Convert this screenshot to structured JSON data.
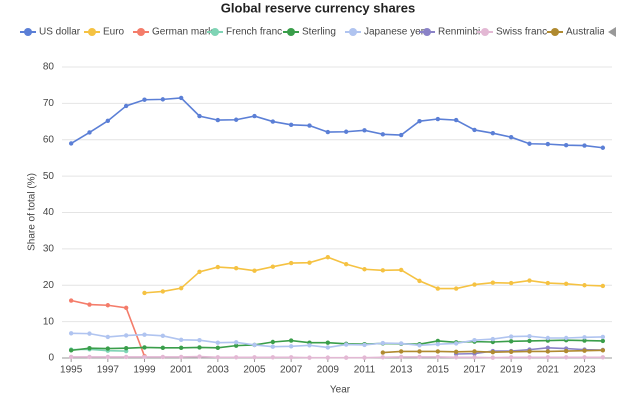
{
  "chart_data": {
    "type": "line",
    "title": "Global reserve currency shares",
    "x_label": "Year",
    "y_label": "Share of total (%)",
    "x": [
      1995,
      1996,
      1997,
      1998,
      1999,
      2000,
      2001,
      2002,
      2003,
      2004,
      2005,
      2006,
      2007,
      2008,
      2009,
      2010,
      2011,
      2012,
      2013,
      2014,
      2015,
      2016,
      2017,
      2018,
      2019,
      2020,
      2021,
      2022,
      2023,
      2024
    ],
    "xlim": [
      1994.5,
      2024.5
    ],
    "xticks": [
      1995,
      1997,
      1999,
      2001,
      2003,
      2005,
      2007,
      2009,
      2011,
      2013,
      2015,
      2017,
      2019,
      2021,
      2023
    ],
    "ylim": [
      0,
      80
    ],
    "yticks": [
      0,
      10,
      20,
      30,
      40,
      50,
      60,
      70,
      80
    ],
    "grid": true,
    "series": [
      {
        "name": "US dollar",
        "color": "#5b7fd6",
        "values": [
          59,
          62,
          65.2,
          69.3,
          71,
          71.1,
          71.5,
          66.5,
          65.4,
          65.5,
          66.5,
          65,
          64.1,
          63.9,
          62.1,
          62.2,
          62.6,
          61.5,
          61.3,
          65.1,
          65.7,
          65.4,
          62.7,
          61.8,
          60.7,
          58.9,
          58.8,
          58.5,
          58.4,
          57.8
        ]
      },
      {
        "name": "Euro",
        "color": "#f5c242",
        "values": [
          null,
          null,
          null,
          null,
          17.9,
          18.3,
          19.2,
          23.7,
          25.0,
          24.7,
          24.0,
          25.1,
          26.1,
          26.2,
          27.7,
          25.8,
          24.4,
          24.1,
          24.2,
          21.2,
          19.1,
          19.1,
          20.2,
          20.7,
          20.6,
          21.3,
          20.6,
          20.4,
          20.0,
          19.8
        ]
      },
      {
        "name": "German mark",
        "color": "#f47c6a",
        "values": [
          15.8,
          14.7,
          14.5,
          13.8,
          0.5,
          null,
          null,
          null,
          null,
          null,
          null,
          null,
          null,
          null,
          null,
          null,
          null,
          null,
          null,
          null,
          null,
          null,
          null,
          null,
          null,
          null,
          null,
          null,
          null,
          null
        ]
      },
      {
        "name": "French franc",
        "color": "#7fd4b5",
        "values": [
          2.3,
          2.4,
          2.0,
          1.9,
          null,
          null,
          null,
          null,
          null,
          null,
          null,
          null,
          null,
          null,
          null,
          null,
          null,
          null,
          null,
          null,
          null,
          null,
          null,
          null,
          null,
          null,
          null,
          null,
          null,
          null
        ]
      },
      {
        "name": "Sterling",
        "color": "#3a9e4a",
        "values": [
          2.1,
          2.7,
          2.6,
          2.7,
          2.9,
          2.8,
          2.8,
          2.9,
          2.8,
          3.4,
          3.6,
          4.4,
          4.8,
          4.2,
          4.2,
          3.9,
          3.8,
          4.0,
          3.9,
          3.8,
          4.7,
          4.3,
          4.5,
          4.4,
          4.6,
          4.7,
          4.8,
          4.9,
          4.8,
          4.7
        ]
      },
      {
        "name": "Japanese yen",
        "color": "#b0c4f0",
        "values": [
          6.8,
          6.7,
          5.8,
          6.2,
          6.4,
          6.1,
          5.0,
          4.9,
          4.2,
          4.3,
          3.6,
          3.1,
          3.2,
          3.5,
          2.9,
          3.7,
          3.6,
          4.1,
          4.0,
          3.5,
          3.8,
          4.0,
          4.9,
          5.2,
          5.9,
          6.0,
          5.5,
          5.5,
          5.7,
          5.8
        ]
      },
      {
        "name": "Renminbi",
        "color": "#8a82c7",
        "values": [
          null,
          null,
          null,
          null,
          null,
          null,
          null,
          null,
          null,
          null,
          null,
          null,
          null,
          null,
          null,
          null,
          null,
          null,
          null,
          null,
          null,
          1.1,
          1.2,
          1.9,
          1.9,
          2.3,
          2.8,
          2.6,
          2.3,
          2.2
        ]
      },
      {
        "name": "Swiss franc",
        "color": "#e3b8d4",
        "values": [
          0.3,
          0.3,
          0.3,
          0.3,
          0.3,
          0.3,
          0.3,
          0.4,
          0.2,
          0.2,
          0.2,
          0.2,
          0.2,
          0.1,
          0.1,
          0.1,
          0.1,
          0.2,
          0.3,
          0.3,
          0.3,
          0.2,
          0.2,
          0.1,
          0.2,
          0.2,
          0.2,
          0.2,
          0.2,
          0.2
        ]
      },
      {
        "name": "Australia",
        "color": "#b08a30",
        "values": [
          null,
          null,
          null,
          null,
          null,
          null,
          null,
          null,
          null,
          null,
          null,
          null,
          null,
          null,
          null,
          null,
          null,
          1.5,
          1.8,
          1.8,
          1.8,
          1.7,
          1.8,
          1.6,
          1.7,
          1.8,
          1.8,
          1.9,
          2.0,
          2.1
        ]
      }
    ]
  }
}
